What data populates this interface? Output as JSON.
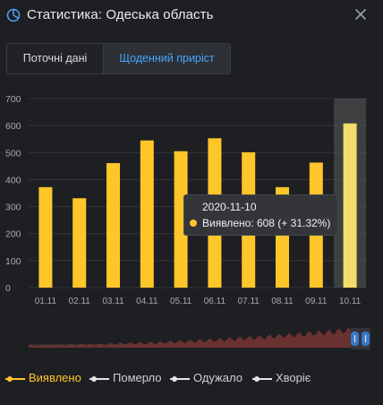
{
  "header": {
    "title": "Статистика: Одеська область",
    "logo_icon": "pie-chart-icon",
    "close_icon": "close-icon"
  },
  "tabs": [
    {
      "label": "Поточні дані",
      "active": false
    },
    {
      "label": "Щоденний приріст",
      "active": true
    }
  ],
  "chart_data": {
    "type": "bar",
    "categories": [
      "01.11",
      "02.11",
      "03.11",
      "04.11",
      "05.11",
      "06.11",
      "07.11",
      "08.11",
      "09.11",
      "10.11"
    ],
    "series": [
      {
        "name": "Виявлено",
        "values": [
          372,
          331,
          461,
          545,
          505,
          553,
          501,
          372,
          463,
          608
        ],
        "color": "#ffc62a"
      }
    ],
    "ylim": [
      0,
      700
    ],
    "yticks": [
      0,
      100,
      200,
      300,
      400,
      500,
      600,
      700
    ],
    "grid": true,
    "highlight_index": 9,
    "title": "",
    "xlabel": "",
    "ylabel": ""
  },
  "tooltip": {
    "date": "2020-11-10",
    "value_text": "Виявлено: 608 (+ 31.32%)"
  },
  "legend": [
    {
      "label": "Виявлено",
      "color": "#ffc62a",
      "active": true
    },
    {
      "label": "Померло",
      "color": "#e5e5e5",
      "active": false
    },
    {
      "label": "Одужало",
      "color": "#e5e5e5",
      "active": false
    },
    {
      "label": "Хворіє",
      "color": "#e5e5e5",
      "active": false
    }
  ],
  "colors": {
    "background": "#1e1f22",
    "accent": "#46a6ff",
    "bar": "#ffc62a",
    "slider_area": "#6e3330",
    "slider_handle": "#3a78c8"
  }
}
